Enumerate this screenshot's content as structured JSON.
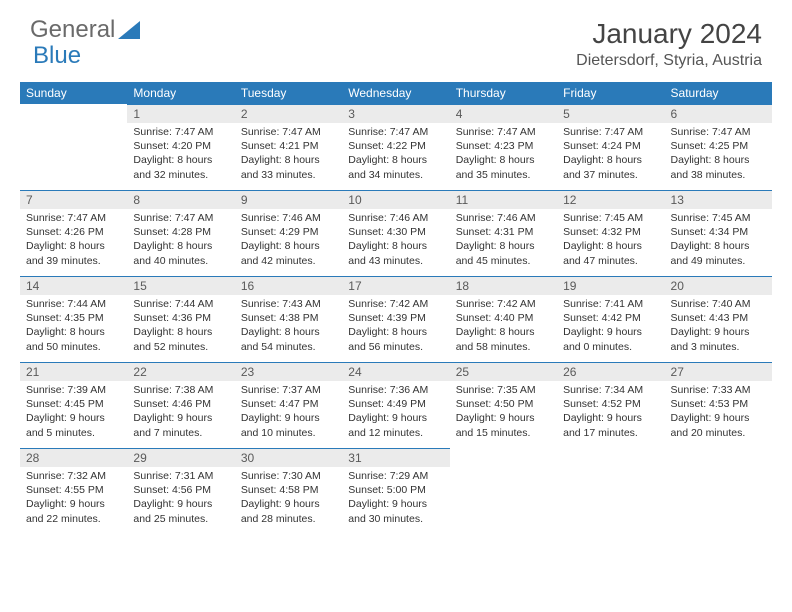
{
  "logo": {
    "text1": "General",
    "text2": "Blue"
  },
  "title": "January 2024",
  "location": "Dietersdorf, Styria, Austria",
  "colors": {
    "accent": "#2a7ab9",
    "daybg": "#ebebeb",
    "text": "#333333",
    "logo_gray": "#6a6a6a"
  },
  "weekdays": [
    "Sunday",
    "Monday",
    "Tuesday",
    "Wednesday",
    "Thursday",
    "Friday",
    "Saturday"
  ],
  "weeks": [
    [
      null,
      {
        "n": "1",
        "sr": "Sunrise: 7:47 AM",
        "ss": "Sunset: 4:20 PM",
        "d1": "Daylight: 8 hours",
        "d2": "and 32 minutes."
      },
      {
        "n": "2",
        "sr": "Sunrise: 7:47 AM",
        "ss": "Sunset: 4:21 PM",
        "d1": "Daylight: 8 hours",
        "d2": "and 33 minutes."
      },
      {
        "n": "3",
        "sr": "Sunrise: 7:47 AM",
        "ss": "Sunset: 4:22 PM",
        "d1": "Daylight: 8 hours",
        "d2": "and 34 minutes."
      },
      {
        "n": "4",
        "sr": "Sunrise: 7:47 AM",
        "ss": "Sunset: 4:23 PM",
        "d1": "Daylight: 8 hours",
        "d2": "and 35 minutes."
      },
      {
        "n": "5",
        "sr": "Sunrise: 7:47 AM",
        "ss": "Sunset: 4:24 PM",
        "d1": "Daylight: 8 hours",
        "d2": "and 37 minutes."
      },
      {
        "n": "6",
        "sr": "Sunrise: 7:47 AM",
        "ss": "Sunset: 4:25 PM",
        "d1": "Daylight: 8 hours",
        "d2": "and 38 minutes."
      }
    ],
    [
      {
        "n": "7",
        "sr": "Sunrise: 7:47 AM",
        "ss": "Sunset: 4:26 PM",
        "d1": "Daylight: 8 hours",
        "d2": "and 39 minutes."
      },
      {
        "n": "8",
        "sr": "Sunrise: 7:47 AM",
        "ss": "Sunset: 4:28 PM",
        "d1": "Daylight: 8 hours",
        "d2": "and 40 minutes."
      },
      {
        "n": "9",
        "sr": "Sunrise: 7:46 AM",
        "ss": "Sunset: 4:29 PM",
        "d1": "Daylight: 8 hours",
        "d2": "and 42 minutes."
      },
      {
        "n": "10",
        "sr": "Sunrise: 7:46 AM",
        "ss": "Sunset: 4:30 PM",
        "d1": "Daylight: 8 hours",
        "d2": "and 43 minutes."
      },
      {
        "n": "11",
        "sr": "Sunrise: 7:46 AM",
        "ss": "Sunset: 4:31 PM",
        "d1": "Daylight: 8 hours",
        "d2": "and 45 minutes."
      },
      {
        "n": "12",
        "sr": "Sunrise: 7:45 AM",
        "ss": "Sunset: 4:32 PM",
        "d1": "Daylight: 8 hours",
        "d2": "and 47 minutes."
      },
      {
        "n": "13",
        "sr": "Sunrise: 7:45 AM",
        "ss": "Sunset: 4:34 PM",
        "d1": "Daylight: 8 hours",
        "d2": "and 49 minutes."
      }
    ],
    [
      {
        "n": "14",
        "sr": "Sunrise: 7:44 AM",
        "ss": "Sunset: 4:35 PM",
        "d1": "Daylight: 8 hours",
        "d2": "and 50 minutes."
      },
      {
        "n": "15",
        "sr": "Sunrise: 7:44 AM",
        "ss": "Sunset: 4:36 PM",
        "d1": "Daylight: 8 hours",
        "d2": "and 52 minutes."
      },
      {
        "n": "16",
        "sr": "Sunrise: 7:43 AM",
        "ss": "Sunset: 4:38 PM",
        "d1": "Daylight: 8 hours",
        "d2": "and 54 minutes."
      },
      {
        "n": "17",
        "sr": "Sunrise: 7:42 AM",
        "ss": "Sunset: 4:39 PM",
        "d1": "Daylight: 8 hours",
        "d2": "and 56 minutes."
      },
      {
        "n": "18",
        "sr": "Sunrise: 7:42 AM",
        "ss": "Sunset: 4:40 PM",
        "d1": "Daylight: 8 hours",
        "d2": "and 58 minutes."
      },
      {
        "n": "19",
        "sr": "Sunrise: 7:41 AM",
        "ss": "Sunset: 4:42 PM",
        "d1": "Daylight: 9 hours",
        "d2": "and 0 minutes."
      },
      {
        "n": "20",
        "sr": "Sunrise: 7:40 AM",
        "ss": "Sunset: 4:43 PM",
        "d1": "Daylight: 9 hours",
        "d2": "and 3 minutes."
      }
    ],
    [
      {
        "n": "21",
        "sr": "Sunrise: 7:39 AM",
        "ss": "Sunset: 4:45 PM",
        "d1": "Daylight: 9 hours",
        "d2": "and 5 minutes."
      },
      {
        "n": "22",
        "sr": "Sunrise: 7:38 AM",
        "ss": "Sunset: 4:46 PM",
        "d1": "Daylight: 9 hours",
        "d2": "and 7 minutes."
      },
      {
        "n": "23",
        "sr": "Sunrise: 7:37 AM",
        "ss": "Sunset: 4:47 PM",
        "d1": "Daylight: 9 hours",
        "d2": "and 10 minutes."
      },
      {
        "n": "24",
        "sr": "Sunrise: 7:36 AM",
        "ss": "Sunset: 4:49 PM",
        "d1": "Daylight: 9 hours",
        "d2": "and 12 minutes."
      },
      {
        "n": "25",
        "sr": "Sunrise: 7:35 AM",
        "ss": "Sunset: 4:50 PM",
        "d1": "Daylight: 9 hours",
        "d2": "and 15 minutes."
      },
      {
        "n": "26",
        "sr": "Sunrise: 7:34 AM",
        "ss": "Sunset: 4:52 PM",
        "d1": "Daylight: 9 hours",
        "d2": "and 17 minutes."
      },
      {
        "n": "27",
        "sr": "Sunrise: 7:33 AM",
        "ss": "Sunset: 4:53 PM",
        "d1": "Daylight: 9 hours",
        "d2": "and 20 minutes."
      }
    ],
    [
      {
        "n": "28",
        "sr": "Sunrise: 7:32 AM",
        "ss": "Sunset: 4:55 PM",
        "d1": "Daylight: 9 hours",
        "d2": "and 22 minutes."
      },
      {
        "n": "29",
        "sr": "Sunrise: 7:31 AM",
        "ss": "Sunset: 4:56 PM",
        "d1": "Daylight: 9 hours",
        "d2": "and 25 minutes."
      },
      {
        "n": "30",
        "sr": "Sunrise: 7:30 AM",
        "ss": "Sunset: 4:58 PM",
        "d1": "Daylight: 9 hours",
        "d2": "and 28 minutes."
      },
      {
        "n": "31",
        "sr": "Sunrise: 7:29 AM",
        "ss": "Sunset: 5:00 PM",
        "d1": "Daylight: 9 hours",
        "d2": "and 30 minutes."
      },
      null,
      null,
      null
    ]
  ]
}
